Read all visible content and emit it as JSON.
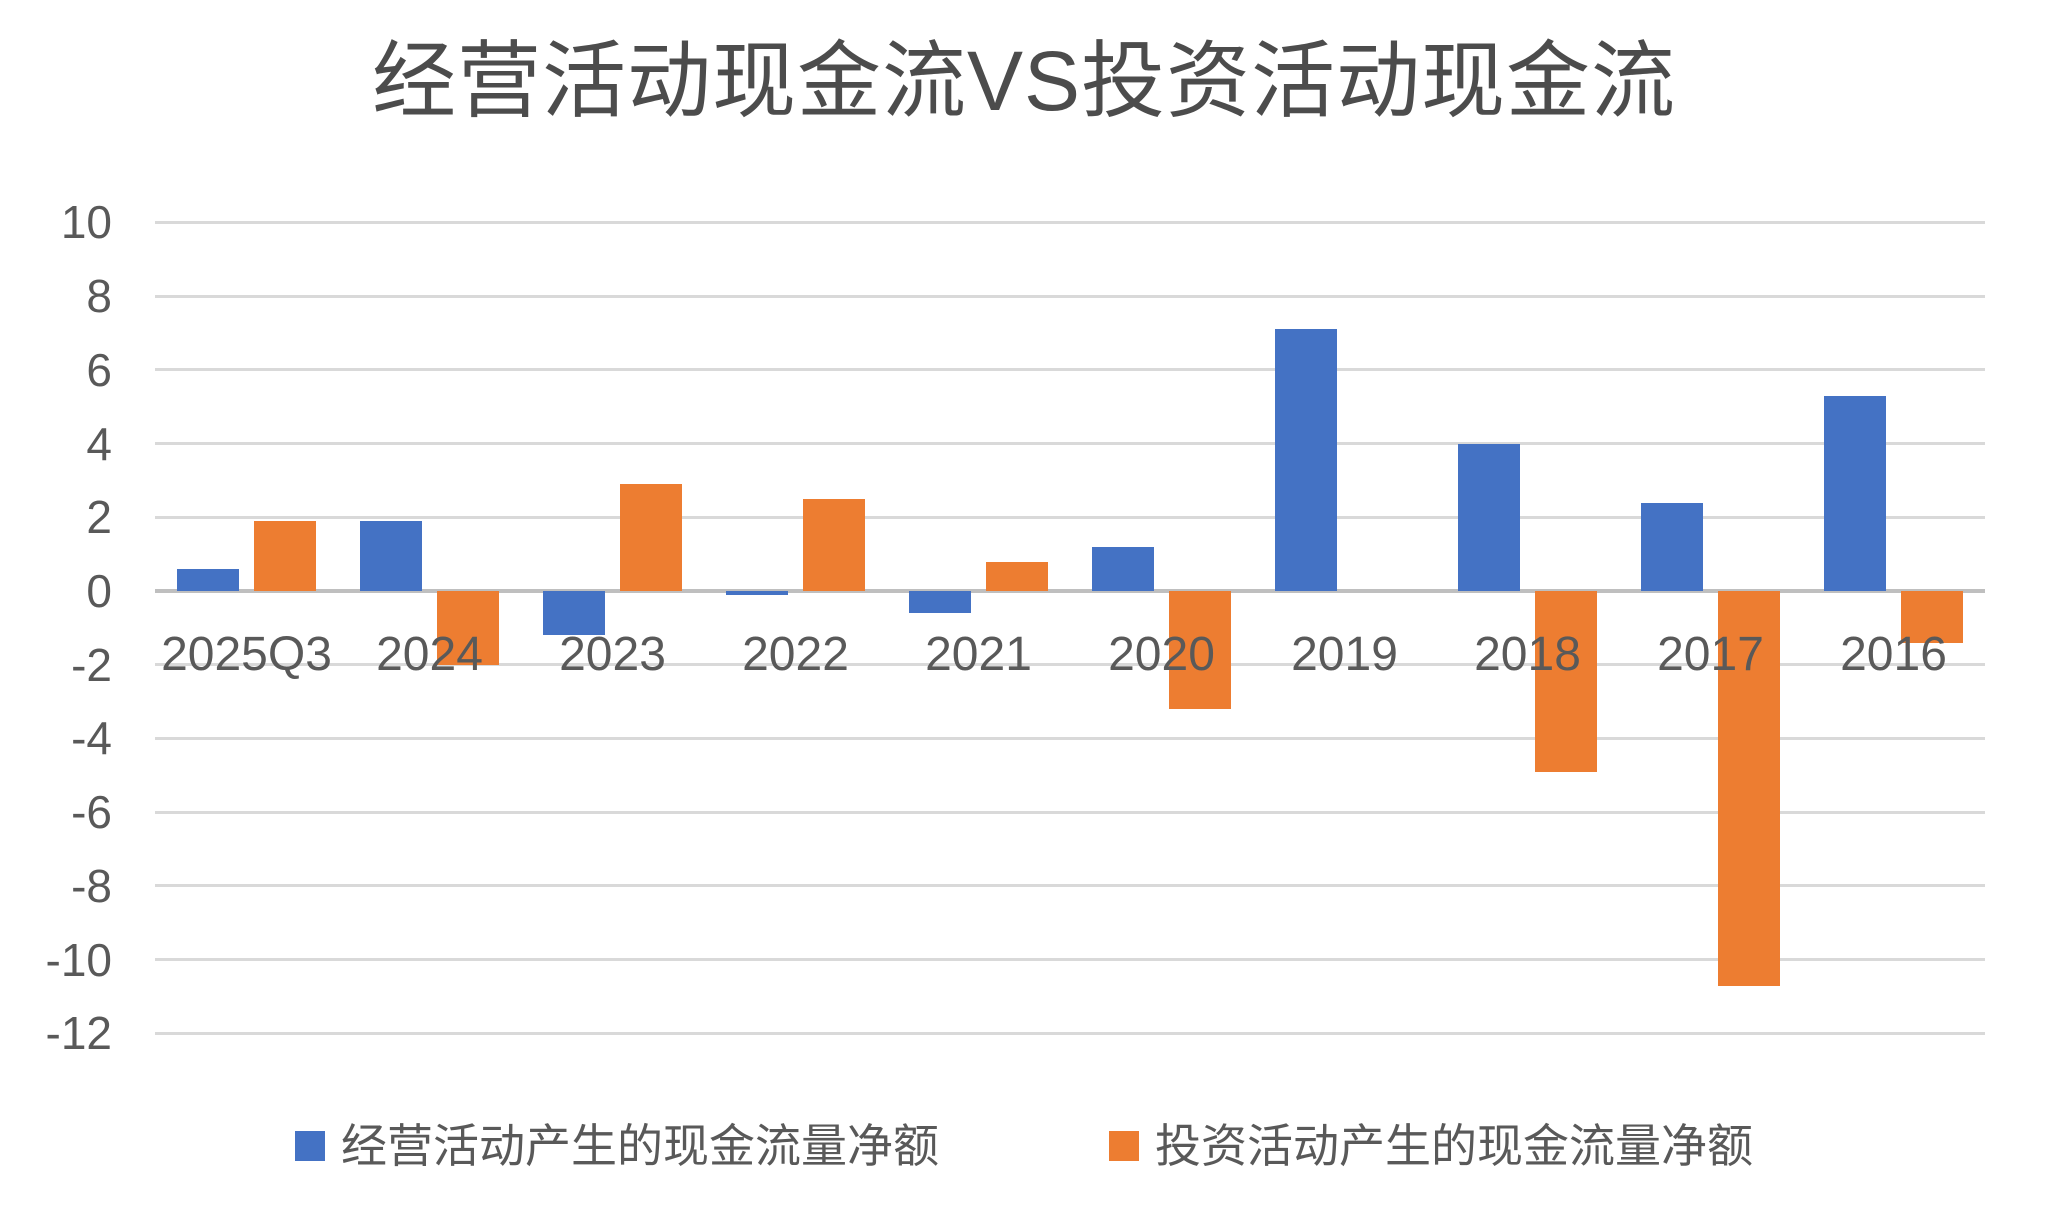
{
  "page": {
    "background": "#ffffff"
  },
  "chart_data": {
    "type": "bar",
    "title": "经营活动现金流VS投资活动现金流",
    "categories": [
      "2025Q3",
      "2024",
      "2023",
      "2022",
      "2021",
      "2020",
      "2019",
      "2018",
      "2017",
      "2016"
    ],
    "series": [
      {
        "name": "经营活动产生的现金流量净额",
        "color": "#4472C4",
        "values": [
          0.6,
          1.9,
          -1.2,
          -0.1,
          -0.6,
          1.2,
          7.1,
          4.0,
          2.4,
          5.3
        ]
      },
      {
        "name": "投资活动产生的现金流量净额",
        "color": "#ED7D31",
        "values": [
          1.9,
          -2.0,
          2.9,
          2.5,
          0.8,
          -3.2,
          0,
          -4.9,
          -10.7,
          -1.4
        ]
      }
    ],
    "ylabel": "",
    "xlabel": "",
    "ylim": [
      -12,
      10
    ],
    "ytick_step": 2,
    "ytick_labels": [
      "10",
      "8",
      "6",
      "4",
      "2",
      "0",
      "-2",
      "-4",
      "-6",
      "-8",
      "-10",
      "-12"
    ],
    "grid": "horizontal",
    "legend_position": "bottom",
    "colors": {
      "gridline": "#D9D9D9",
      "zero_line": "#BFBFBF",
      "axis_text": "#595959",
      "title_text": "#4C4C4C"
    }
  }
}
